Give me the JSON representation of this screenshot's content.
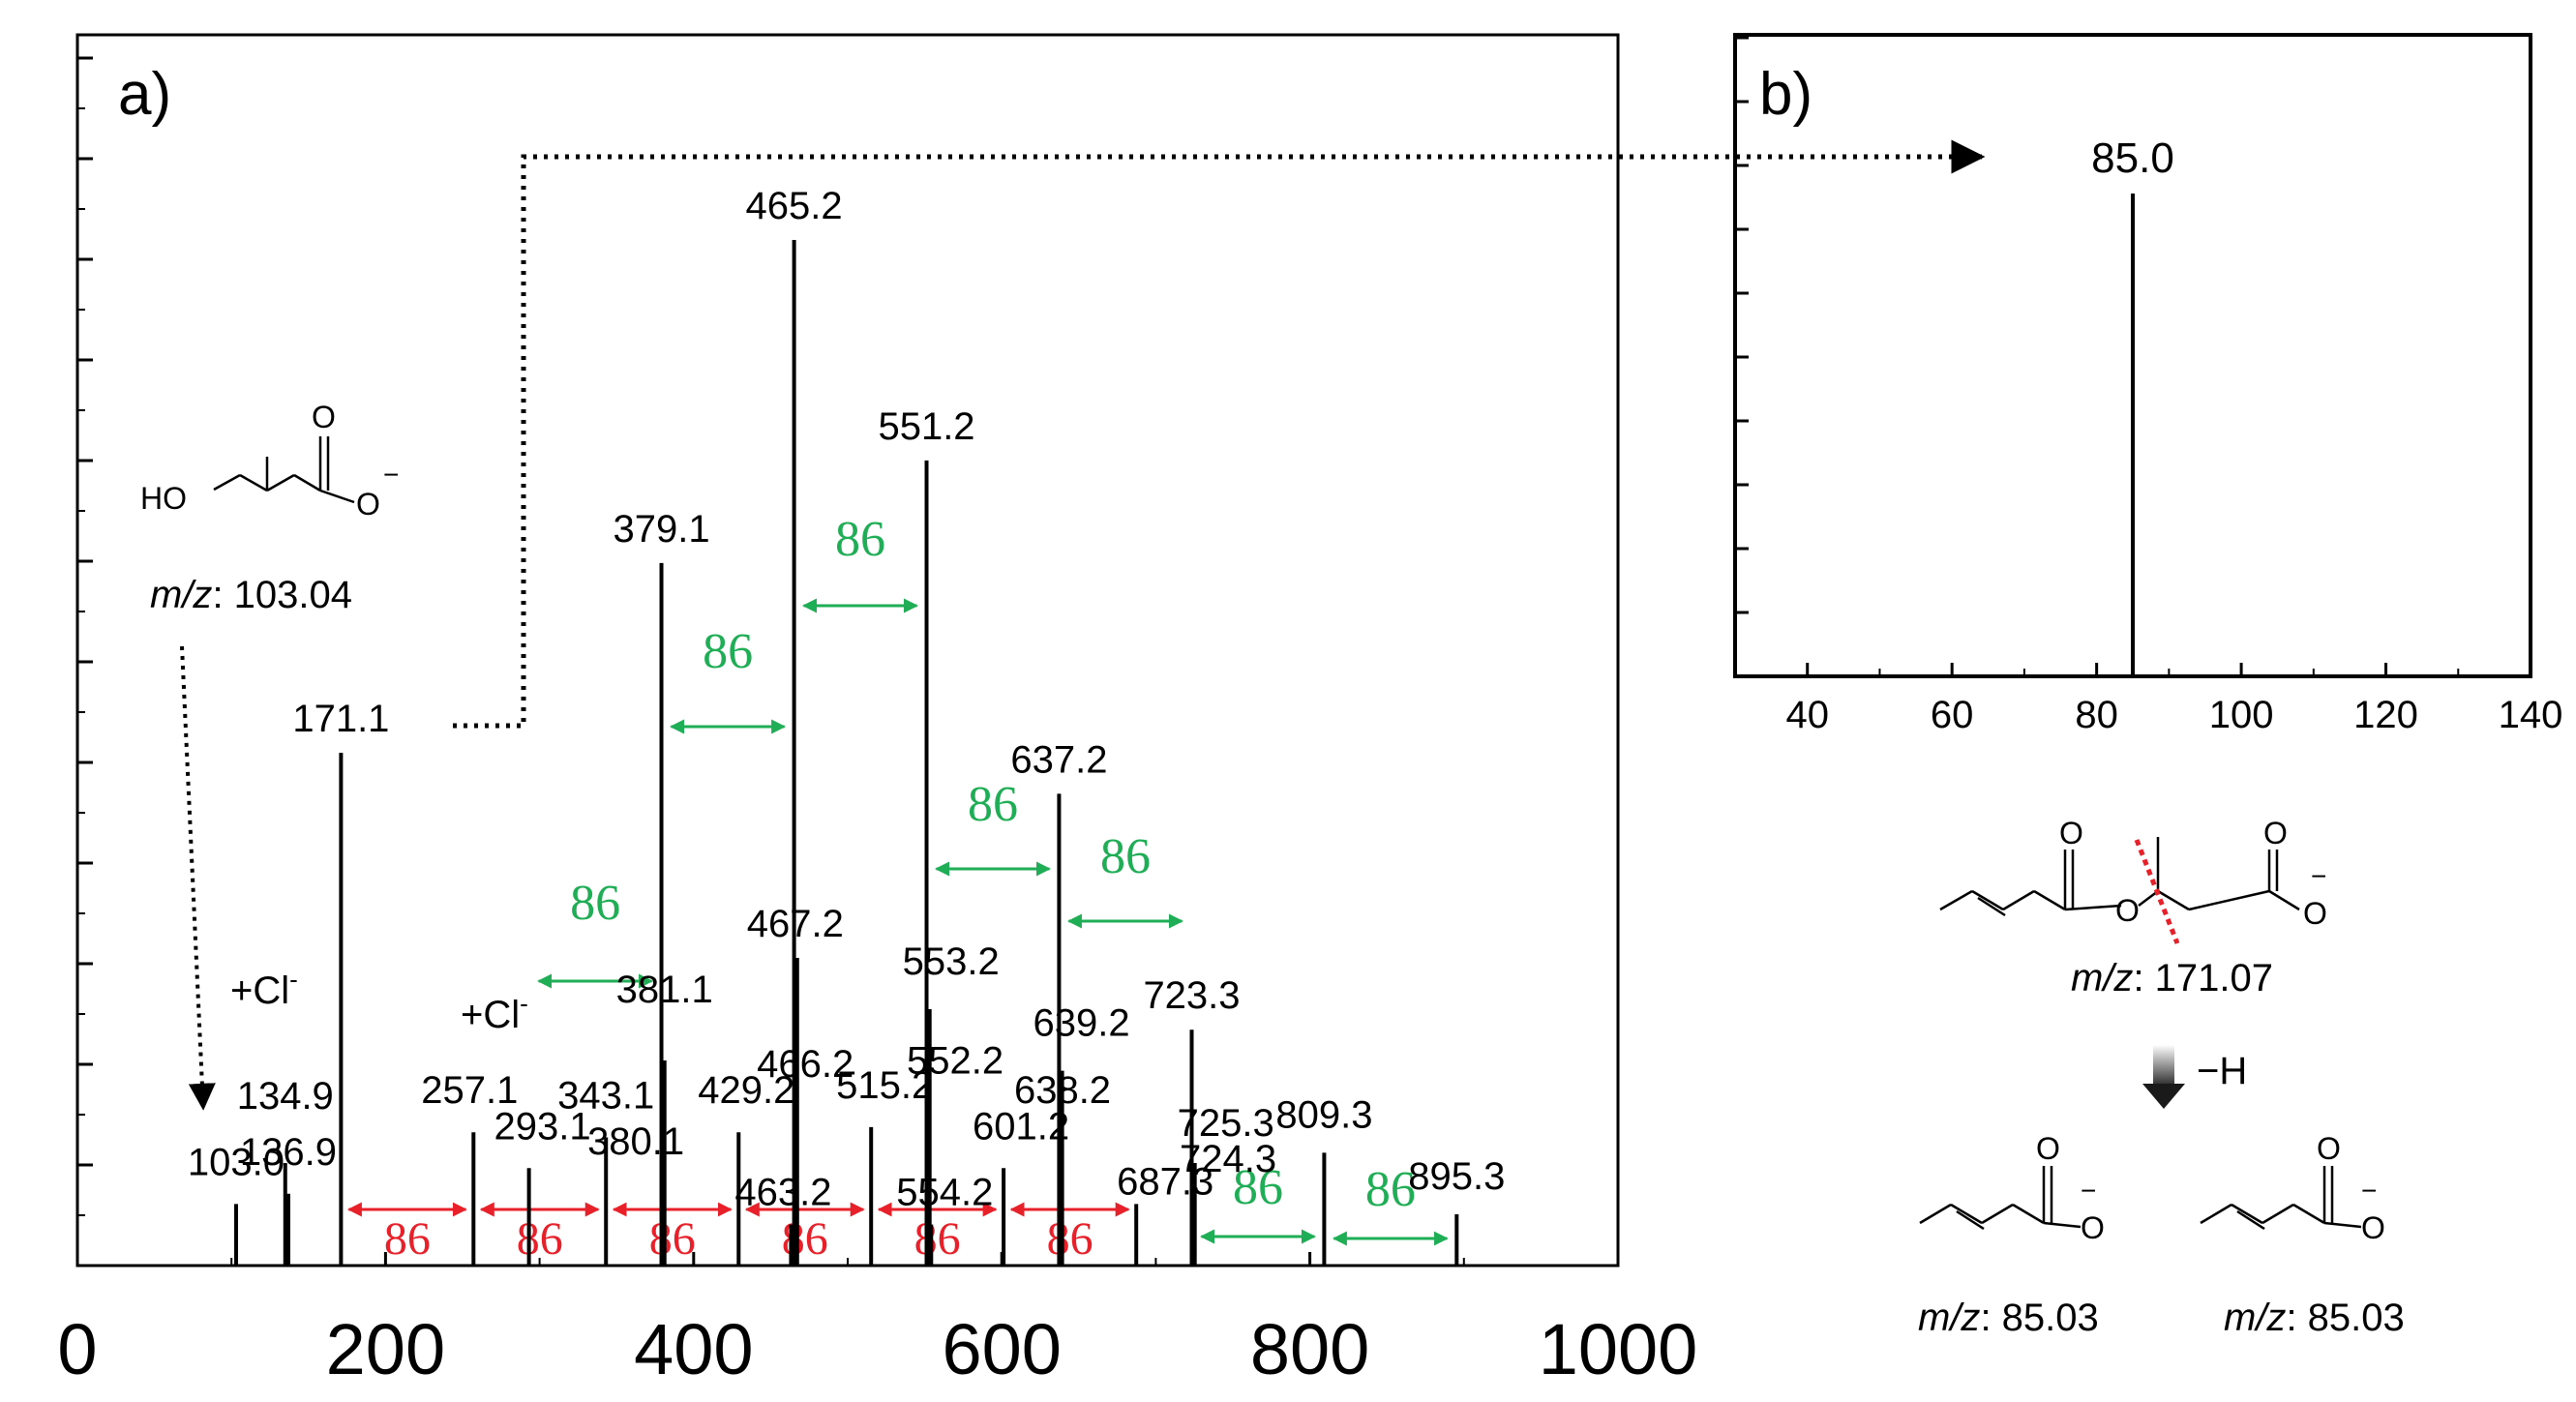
{
  "chart_data": [
    {
      "type": "bar",
      "panel_label": "a)",
      "xlabel": "",
      "ylabel": "",
      "xlim": [
        0,
        1000
      ],
      "x_ticks": [
        "0",
        "200",
        "400",
        "600",
        "800",
        "1000"
      ],
      "ylim": [
        0,
        100
      ],
      "peaks": [
        {
          "mz": 103.0,
          "intensity": 6,
          "label": "103.0"
        },
        {
          "mz": 134.9,
          "intensity": 10,
          "label": "134.9"
        },
        {
          "mz": 136.9,
          "intensity": 7,
          "label": "136.9"
        },
        {
          "mz": 171.1,
          "intensity": 50,
          "label": "171.1"
        },
        {
          "mz": 257.1,
          "intensity": 13,
          "label": "257.1"
        },
        {
          "mz": 293.1,
          "intensity": 9.5,
          "label": "293.1"
        },
        {
          "mz": 343.1,
          "intensity": 12.5,
          "label": "343.1"
        },
        {
          "mz": 379.1,
          "intensity": 68.5,
          "label": "379.1"
        },
        {
          "mz": 380.1,
          "intensity": 8,
          "label": "380.1"
        },
        {
          "mz": 381.1,
          "intensity": 20,
          "label": "381.1"
        },
        {
          "mz": 429.2,
          "intensity": 13,
          "label": "429.2"
        },
        {
          "mz": 463.2,
          "intensity": 4,
          "label": "463.2"
        },
        {
          "mz": 465.2,
          "intensity": 100,
          "label": "465.2"
        },
        {
          "mz": 466.2,
          "intensity": 15,
          "label": "466.2"
        },
        {
          "mz": 467.2,
          "intensity": 30,
          "label": "467.2"
        },
        {
          "mz": 515.2,
          "intensity": 13.5,
          "label": "515.2"
        },
        {
          "mz": 551.2,
          "intensity": 78.5,
          "label": "551.2"
        },
        {
          "mz": 552.2,
          "intensity": 15.5,
          "label": "552.2"
        },
        {
          "mz": 553.2,
          "intensity": 25,
          "label": "553.2"
        },
        {
          "mz": 554.2,
          "intensity": 4,
          "label": "554.2"
        },
        {
          "mz": 601.2,
          "intensity": 9.5,
          "label": "601.2"
        },
        {
          "mz": 637.2,
          "intensity": 46,
          "label": "637.2"
        },
        {
          "mz": 638.2,
          "intensity": 13,
          "label": "638.2"
        },
        {
          "mz": 639.2,
          "intensity": 19,
          "label": "639.2"
        },
        {
          "mz": 687.3,
          "intensity": 6,
          "label": "687.3"
        },
        {
          "mz": 723.3,
          "intensity": 23,
          "label": "723.3"
        },
        {
          "mz": 724.3,
          "intensity": 8,
          "label": "724.3"
        },
        {
          "mz": 725.3,
          "intensity": 10,
          "label": "725.3"
        },
        {
          "mz": 809.3,
          "intensity": 11,
          "label": "809.3"
        },
        {
          "mz": 895.3,
          "intensity": 5,
          "label": "895.3"
        }
      ],
      "annotations": {
        "cl_adduct_1": "+Cl",
        "cl_adduct_2": "+Cl",
        "cl_superscript": "-",
        "mass_shift": "86",
        "red_shift_pairs": [
          [
            171.1,
            257.1
          ],
          [
            257.1,
            343.1
          ],
          [
            343.1,
            429.2
          ],
          [
            429.2,
            515.2
          ],
          [
            515.2,
            601.2
          ],
          [
            601.2,
            687.3
          ]
        ],
        "green_shift_pairs": [
          [
            293.1,
            379.1
          ],
          [
            379.1,
            465.2
          ],
          [
            465.2,
            551.2
          ],
          [
            551.2,
            637.2
          ],
          [
            637.2,
            723.3
          ],
          [
            723.3,
            809.3
          ],
          [
            809.3,
            895.3
          ]
        ],
        "structure_mz_label": "m/z",
        "structure_mz_value": ": 103.04",
        "structure_atoms": {
          "O": "O",
          "HO": "HO",
          "minus": "−"
        }
      }
    },
    {
      "type": "bar",
      "panel_label": "b)",
      "xlim": [
        30,
        140
      ],
      "x_ticks": [
        "40",
        "60",
        "80",
        "100",
        "120",
        "140"
      ],
      "ylim": [
        0,
        100
      ],
      "peaks": [
        {
          "mz": 85.0,
          "intensity": 100,
          "label": "85.0"
        }
      ]
    }
  ],
  "scheme": {
    "precursor_mz_label": "m/z",
    "precursor_mz_value": ": 171.07",
    "loss_label": "−H",
    "product1_mz_label": "m/z",
    "product1_mz_value": ": 85.03",
    "product2_mz_label": "m/z",
    "product2_mz_value": ": 85.03",
    "atom_O": "O",
    "minus": "−"
  },
  "colors": {
    "red_arrow": "#e8202a",
    "green_arrow": "#1fae55",
    "red_cut": "#e8202a"
  }
}
